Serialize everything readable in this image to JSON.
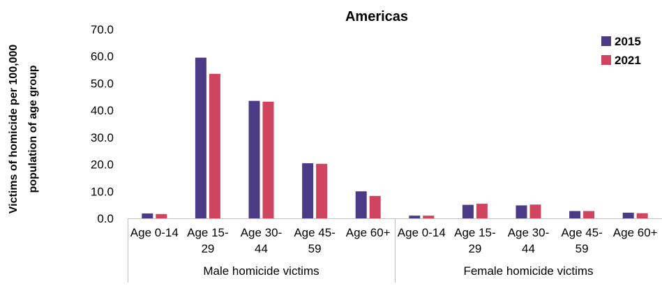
{
  "chart_data": {
    "type": "bar",
    "title": "Americas",
    "ylabel": "Victims of homicide per 100,000 population of age group",
    "ylim": [
      0,
      70
    ],
    "yticks": [
      "0.0",
      "10.0",
      "20.0",
      "30.0",
      "40.0",
      "50.0",
      "60.0",
      "70.0"
    ],
    "groups": [
      {
        "label": "Male homicide victims",
        "categories": [
          [
            "Age 0-14"
          ],
          [
            "Age 15-",
            "29"
          ],
          [
            "Age 30-",
            "44"
          ],
          [
            "Age 45-",
            "59"
          ],
          [
            "Age 60+"
          ]
        ]
      },
      {
        "label": "Female homicide victims",
        "categories": [
          [
            "Age 0-14"
          ],
          [
            "Age 15-",
            "29"
          ],
          [
            "Age 30-",
            "44"
          ],
          [
            "Age 45-",
            "59"
          ],
          [
            "Age 60+"
          ]
        ]
      }
    ],
    "series": [
      {
        "name": "2015",
        "color": "#4B3B87",
        "values": [
          1.8,
          59.5,
          43.5,
          20.4,
          10.0,
          1.0,
          5.0,
          4.8,
          2.7,
          2.1
        ]
      },
      {
        "name": "2021",
        "color": "#D1445F",
        "values": [
          1.6,
          53.5,
          43.2,
          20.2,
          8.3,
          1.0,
          5.4,
          5.1,
          2.7,
          1.9
        ]
      }
    ],
    "legend_position": "top-right",
    "grid": false
  }
}
